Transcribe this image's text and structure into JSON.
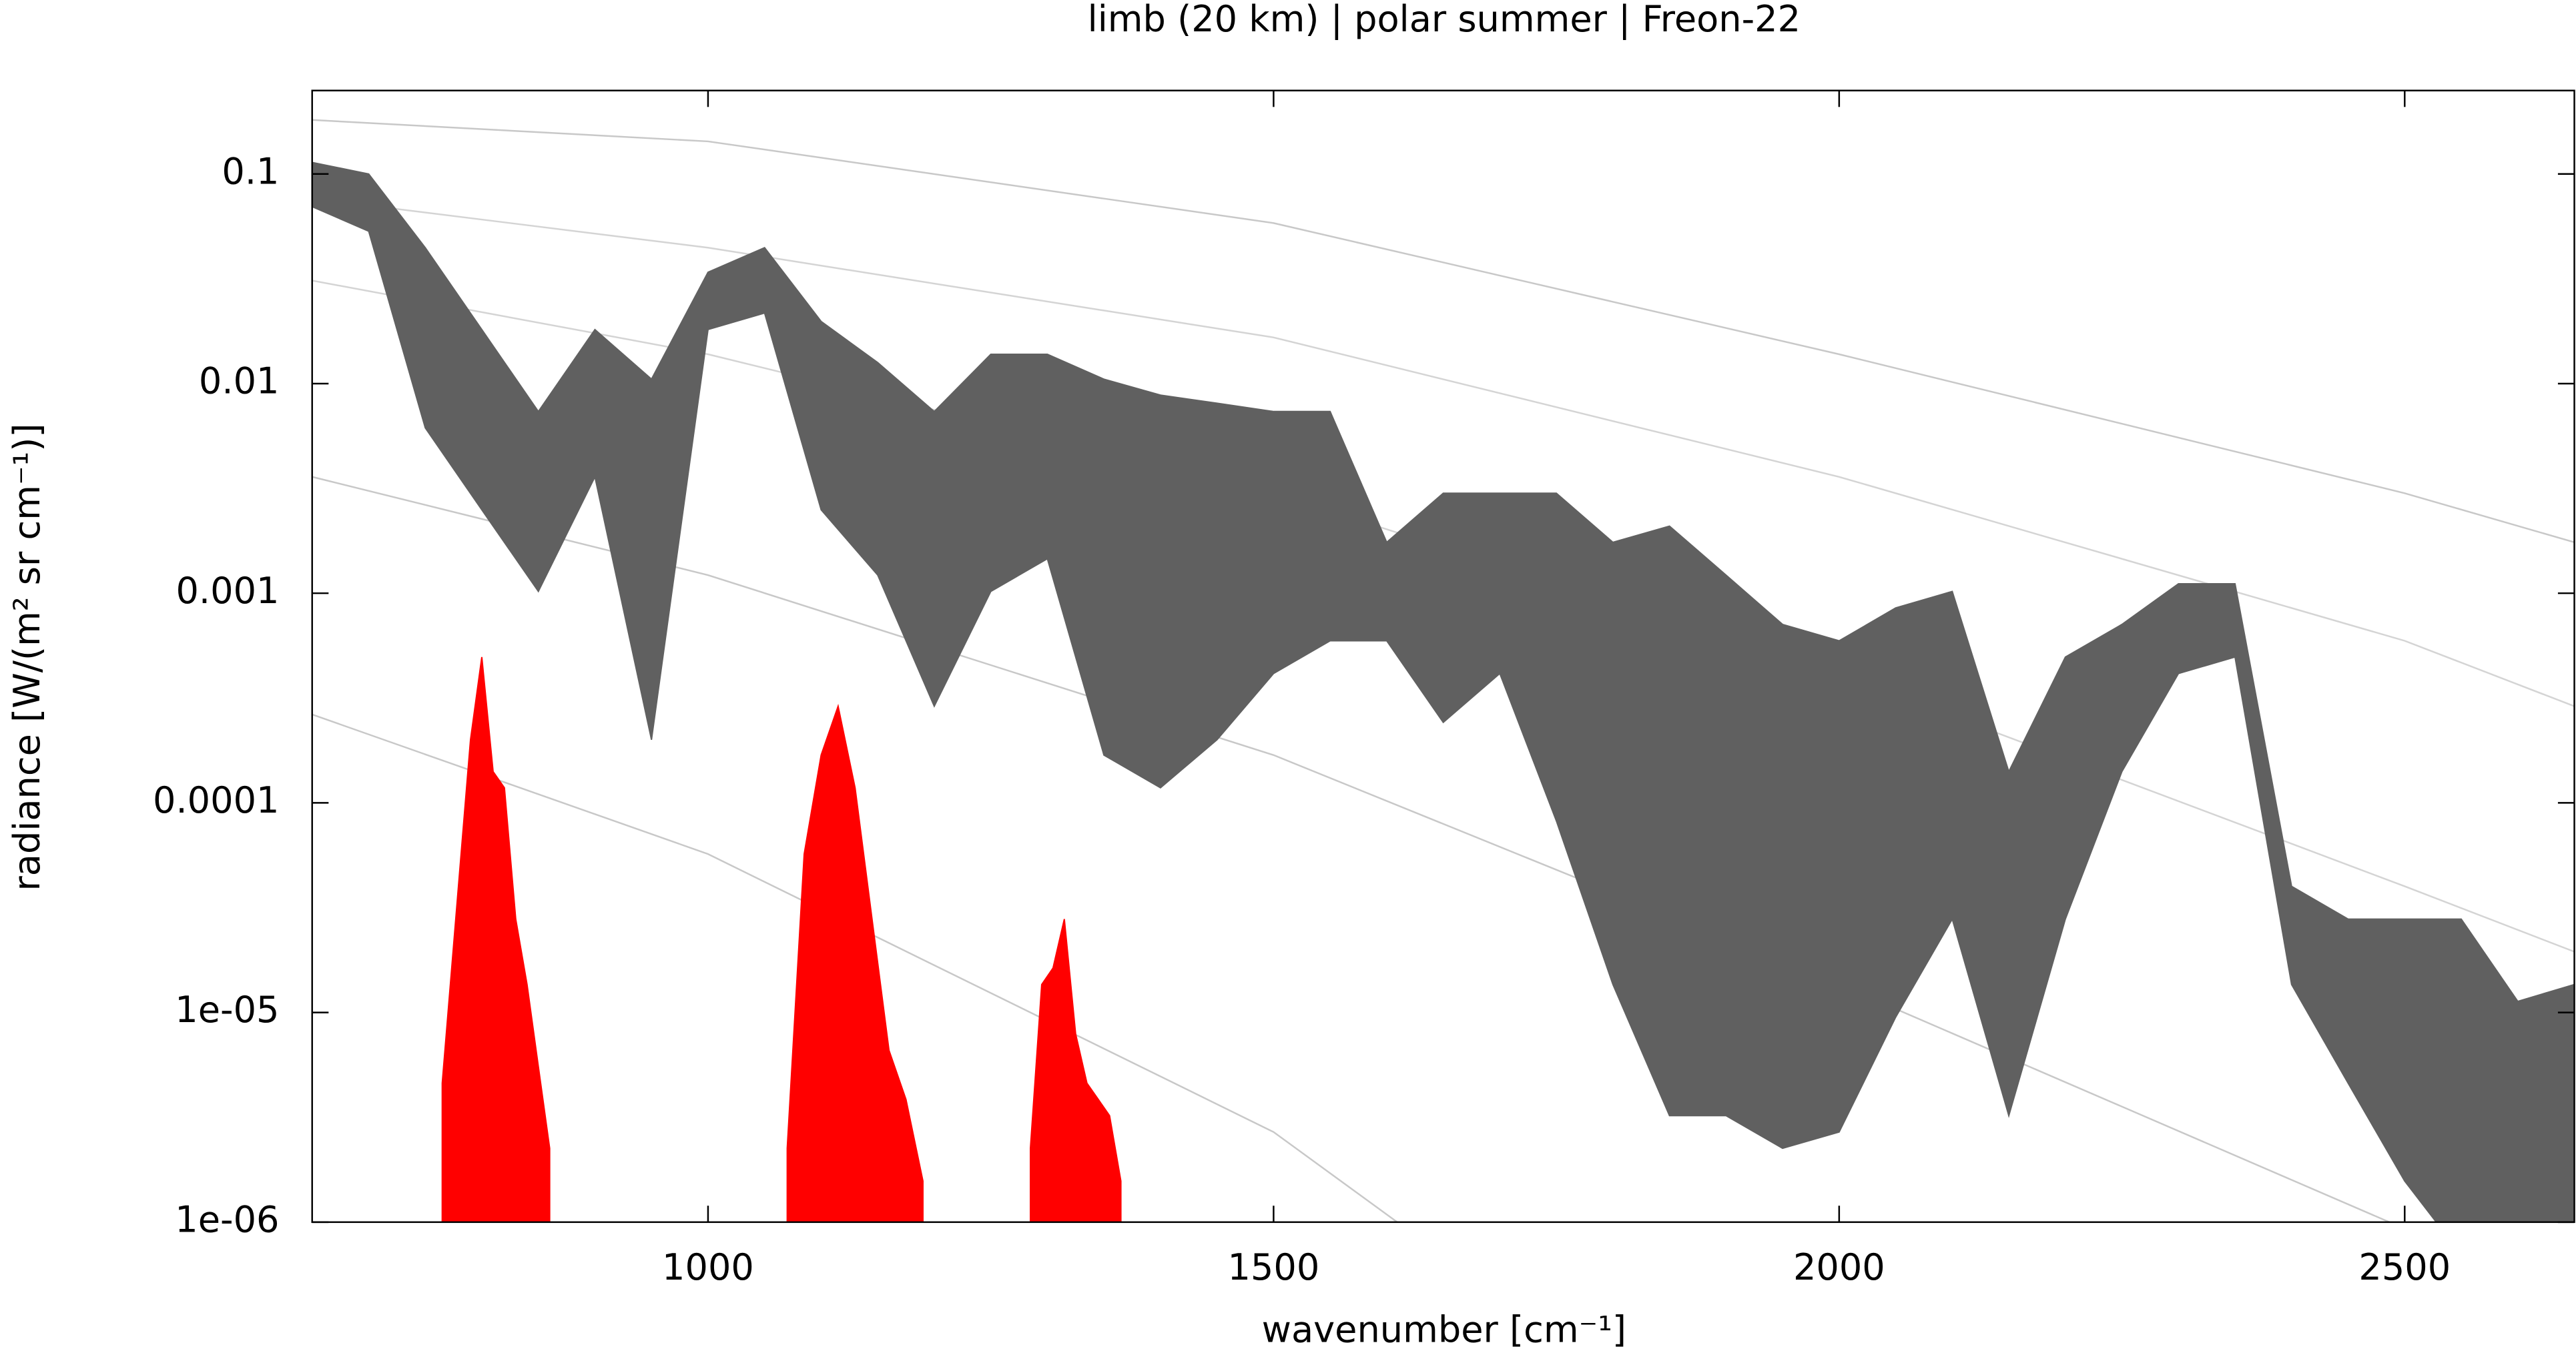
{
  "chart_data": {
    "type": "line",
    "title": "limb (20 km) | polar summer | Freon-22",
    "xlabel": "wavenumber [cm⁻¹]",
    "ylabel": "radiance [W/(m² sr cm⁻¹)]",
    "xlim": [
      650,
      2650
    ],
    "xticks": [
      1000,
      1500,
      2000,
      2500
    ],
    "ylim": [
      1e-06,
      0.25
    ],
    "ylog": true,
    "yticks": [
      0.1,
      0.01,
      0.001,
      0.0001,
      {
        "value": 1e-05,
        "label": "1e-05"
      },
      {
        "value": 1e-06,
        "label": "1e-06"
      }
    ],
    "series": [
      {
        "color": "#c8c8c8",
        "x": [
          650,
          1000,
          1500,
          2000,
          2500,
          2650
        ],
        "values": [
          0.181,
          0.143,
          0.0583,
          0.0138,
          0.003,
          0.00175
        ]
      },
      {
        "color": "#d4d4d4",
        "x": [
          650,
          1000,
          1500,
          2000,
          2500,
          2650
        ],
        "values": [
          0.0764,
          0.0445,
          0.0166,
          0.00359,
          0.000593,
          0.000289
        ]
      },
      {
        "color": "#d4d4d4",
        "x": [
          650,
          1000,
          1500,
          2000,
          2500,
          2650
        ],
        "values": [
          0.031,
          0.0138,
          0.003,
          0.000414,
          4e-05,
          1.95e-05
        ]
      },
      {
        "color": "#c8c8c8",
        "x": [
          650,
          1000,
          1500,
          2000,
          2500,
          2650
        ],
        "values": [
          0.00359,
          0.00122,
          0.000169,
          1.36e-05,
          9.3e-07,
          4e-07
        ]
      },
      {
        "color": "#c8c8c8",
        "x": [
          650,
          1000,
          1500,
          1700
        ],
        "values": [
          0.000264,
          5.7e-05,
          2.69e-06,
          4.4e-07
        ]
      },
      {
        "color": "#606060",
        "x": [
          650,
          700,
          750,
          800,
          850,
          900,
          950,
          1000,
          1050,
          1100,
          1150,
          1200,
          1250,
          1300,
          1350,
          1400,
          1450,
          1500,
          1550,
          1600,
          1650,
          1700,
          1750,
          1800,
          1850,
          1900,
          1950,
          2000,
          2050,
          2100,
          2150,
          2200,
          2250,
          2300,
          2350,
          2400,
          2450,
          2500,
          2550,
          2600,
          2650
        ],
        "values": [
          0.1135,
          0.1,
          0.0445,
          0.0181,
          0.00736,
          0.0181,
          0.0105,
          0.034,
          0.0445,
          0.0198,
          0.0126,
          0.00736,
          0.0138,
          0.0138,
          0.0105,
          0.00881,
          0.00806,
          0.00736,
          0.00736,
          0.00175,
          0.003,
          0.003,
          0.003,
          0.00175,
          0.00209,
          0.00122,
          0.00071,
          0.000593,
          0.000851,
          0.00102,
          0.000141,
          0.000496,
          0.00071,
          0.00111,
          0.00111,
          4e-05,
          2.79e-05,
          2.79e-05,
          2.79e-05,
          1.13e-05,
          1.36e-05
        ],
        "low": [
          0.0698,
          0.0533,
          0.00615,
          0.0025,
          0.00102,
          0.00359,
          0.0002,
          0.0181,
          0.0217,
          0.0025,
          0.00122,
          0.000289,
          0.00102,
          0.00146,
          0.000169,
          0.000118,
          0.0002,
          0.000414,
          0.000593,
          0.000593,
          0.000242,
          0.000414,
          8.2e-05,
          1.36e-05,
          3.22e-06,
          3.22e-06,
          2.25e-06,
          2.69e-06,
          9.5e-06,
          2.79e-05,
          3.22e-06,
          2.79e-05,
          0.000141,
          0.000414,
          0.000496,
          1.36e-05,
          4.6e-06,
          1.57e-06,
          7e-07,
          7e-07,
          7e-07
        ]
      },
      {
        "color": "#ff0000",
        "fill": true,
        "x": [
          765,
          790,
          800,
          810,
          820,
          830,
          840,
          850,
          860,
          960,
          1070,
          1085,
          1100,
          1115,
          1130,
          1145,
          1160,
          1175,
          1190,
          1240,
          1285,
          1295,
          1305,
          1315,
          1325,
          1335,
          1345,
          1355,
          1365
        ],
        "values": [
          4.6e-06,
          0.0002,
          0.000496,
          0.000141,
          0.000118,
          2.79e-05,
          1.36e-05,
          5.52e-06,
          2.25e-06,
          null,
          2.25e-06,
          5.7e-05,
          0.000169,
          0.000289,
          0.000118,
          2.79e-05,
          6.6e-06,
          3.85e-06,
          1.57e-06,
          null,
          2.25e-06,
          1.36e-05,
          1.63e-05,
          2.79e-05,
          7.9e-06,
          4.6e-06,
          3.85e-06,
          3.22e-06,
          1.57e-06
        ]
      }
    ]
  }
}
